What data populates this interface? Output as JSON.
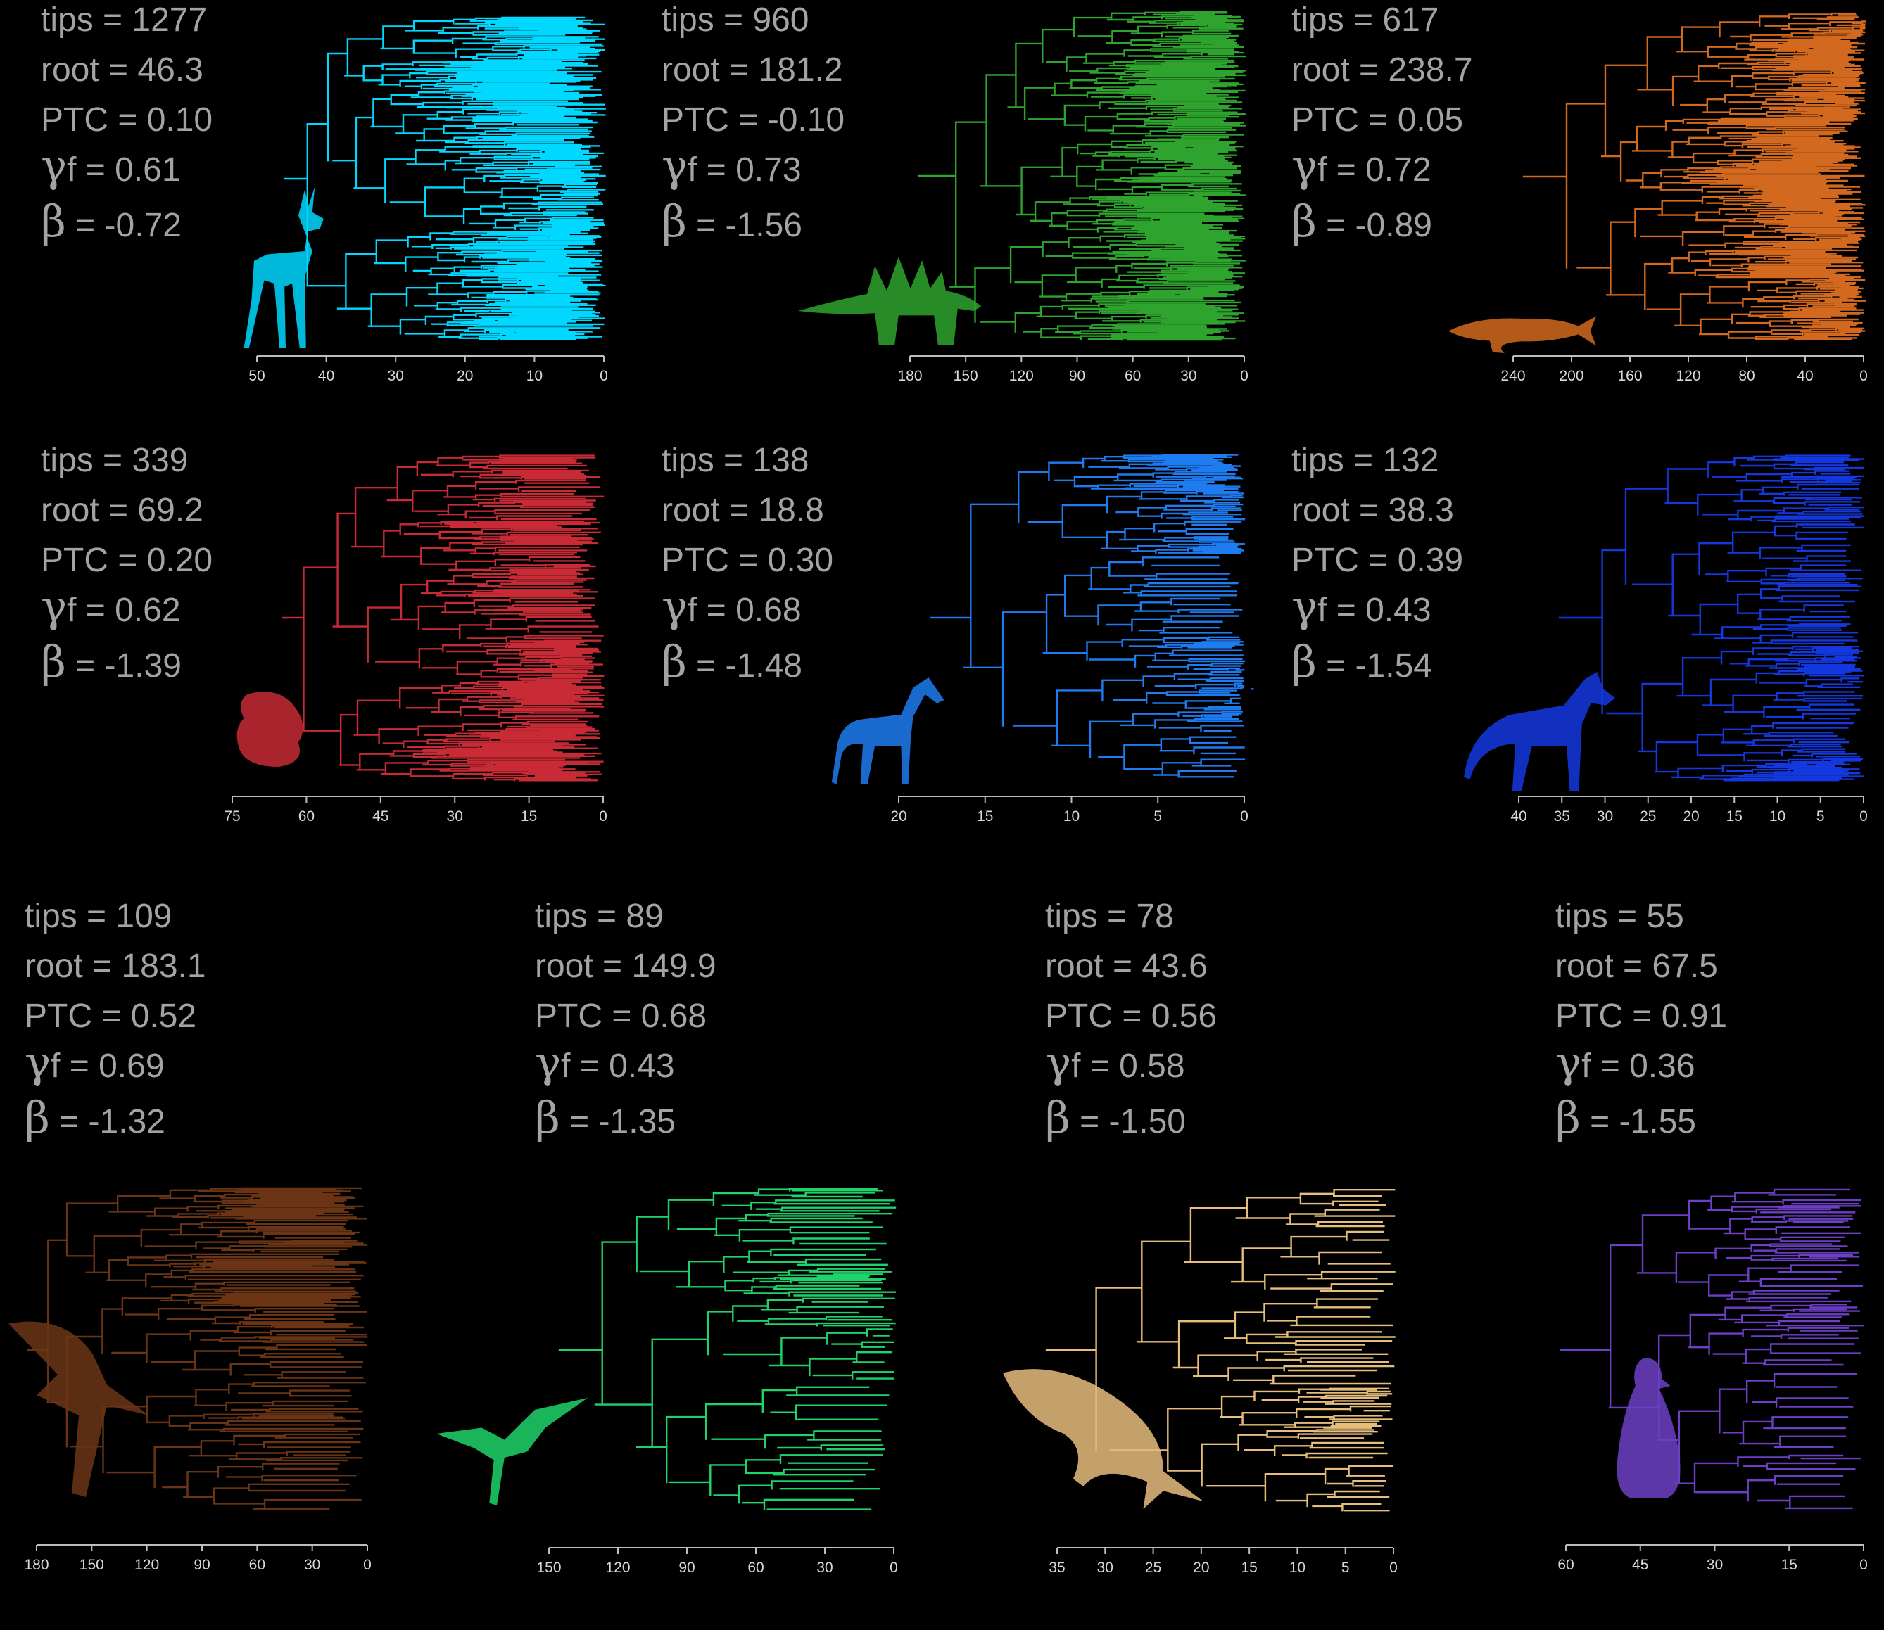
{
  "panels": [
    {
      "tips": "1277",
      "root": "46.3",
      "ptc": "0.10",
      "gamma": "0.61",
      "beta": "-0.72",
      "color": "#00d8ff",
      "silhouette": "deer",
      "ticks": [
        "50",
        "40",
        "30",
        "20",
        "10",
        "0"
      ],
      "max_age": 50
    },
    {
      "tips": "960",
      "root": "181.2",
      "ptc": "-0.10",
      "gamma": "0.73",
      "beta": "-1.56",
      "color": "#2ea32e",
      "silhouette": "stegosaurus",
      "ticks": [
        "180",
        "150",
        "120",
        "90",
        "60",
        "30",
        "0"
      ],
      "max_age": 180
    },
    {
      "tips": "617",
      "root": "238.7",
      "ptc": "0.05",
      "gamma": "0.72",
      "beta": "-0.89",
      "color": "#d2691e",
      "silhouette": "fish",
      "ticks": [
        "240",
        "200",
        "160",
        "120",
        "80",
        "40",
        "0"
      ],
      "max_age": 240
    },
    {
      "tips": "339",
      "root": "69.2",
      "ptc": "0.20",
      "gamma": "0.62",
      "beta": "-1.39",
      "color": "#c82a36",
      "silhouette": "foraminifera",
      "ticks": [
        "75",
        "60",
        "45",
        "30",
        "15",
        "0"
      ],
      "max_age": 75
    },
    {
      "tips": "138",
      "root": "18.8",
      "ptc": "0.30",
      "gamma": "0.68",
      "beta": "-1.48",
      "color": "#1e7bf0",
      "silhouette": "horse",
      "ticks": [
        "20",
        "15",
        "10",
        "5",
        "0"
      ],
      "max_age": 20
    },
    {
      "tips": "132",
      "root": "38.3",
      "ptc": "0.39",
      "gamma": "0.43",
      "beta": "-1.54",
      "color": "#1438e0",
      "silhouette": "wolf",
      "ticks": [
        "40",
        "35",
        "30",
        "25",
        "20",
        "15",
        "10",
        "5",
        "0"
      ],
      "max_age": 40
    },
    {
      "tips": "109",
      "root": "183.1",
      "ptc": "0.52",
      "gamma": "0.69",
      "beta": "-1.32",
      "color": "#6b3515",
      "silhouette": "pterosaur",
      "ticks": [
        "180",
        "150",
        "120",
        "90",
        "60",
        "30",
        "0"
      ],
      "max_age": 180
    },
    {
      "tips": "89",
      "root": "149.9",
      "ptc": "0.68",
      "gamma": "0.43",
      "beta": "-1.35",
      "color": "#1fd36b",
      "silhouette": "bird",
      "ticks": [
        "150",
        "120",
        "90",
        "60",
        "30",
        "0"
      ],
      "max_age": 150
    },
    {
      "tips": "78",
      "root": "43.6",
      "ptc": "0.56",
      "gamma": "0.58",
      "beta": "-1.50",
      "color": "#e6bd7c",
      "silhouette": "whale",
      "ticks": [
        "35",
        "30",
        "25",
        "20",
        "15",
        "10",
        "5",
        "0"
      ],
      "max_age": 35
    },
    {
      "tips": "55",
      "root": "67.5",
      "ptc": "0.91",
      "gamma": "0.36",
      "beta": "-1.55",
      "color": "#6d3fc6",
      "silhouette": "penguin",
      "ticks": [
        "60",
        "45",
        "30",
        "15",
        "0"
      ],
      "max_age": 60
    }
  ],
  "labels": {
    "tips": "tips = ",
    "root": "root = ",
    "ptc": "PTC = ",
    "gamma_symbol": "γ",
    "gamma_sub": "f = ",
    "beta_symbol": "β",
    "beta_eq": " = "
  }
}
